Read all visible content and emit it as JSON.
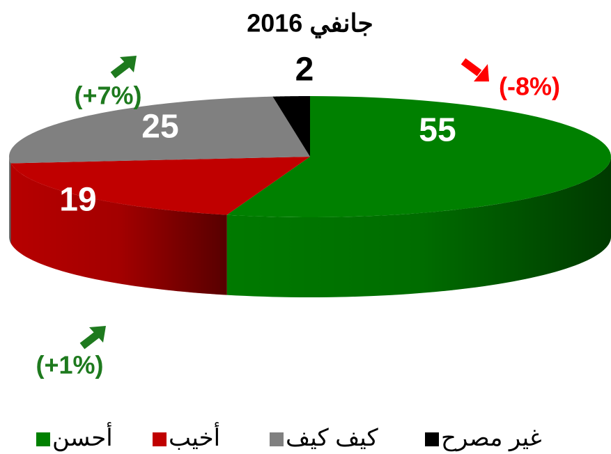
{
  "chart_data": {
    "type": "pie",
    "title": "جانفي 2016",
    "categories": [
      "أحسن",
      "أخيب",
      "كيف كيف",
      "غير مصرح"
    ],
    "values": [
      55,
      19,
      25,
      2
    ],
    "colors": [
      "#008000",
      "#c00000",
      "#808080",
      "#000000"
    ],
    "annotations": [
      {
        "text": "(-8%)",
        "color": "#ff0000"
      },
      {
        "text": "(+1%)",
        "color": "#1e7a1e"
      },
      {
        "text": "(+7%)",
        "color": "#1e7a1e"
      }
    ]
  }
}
